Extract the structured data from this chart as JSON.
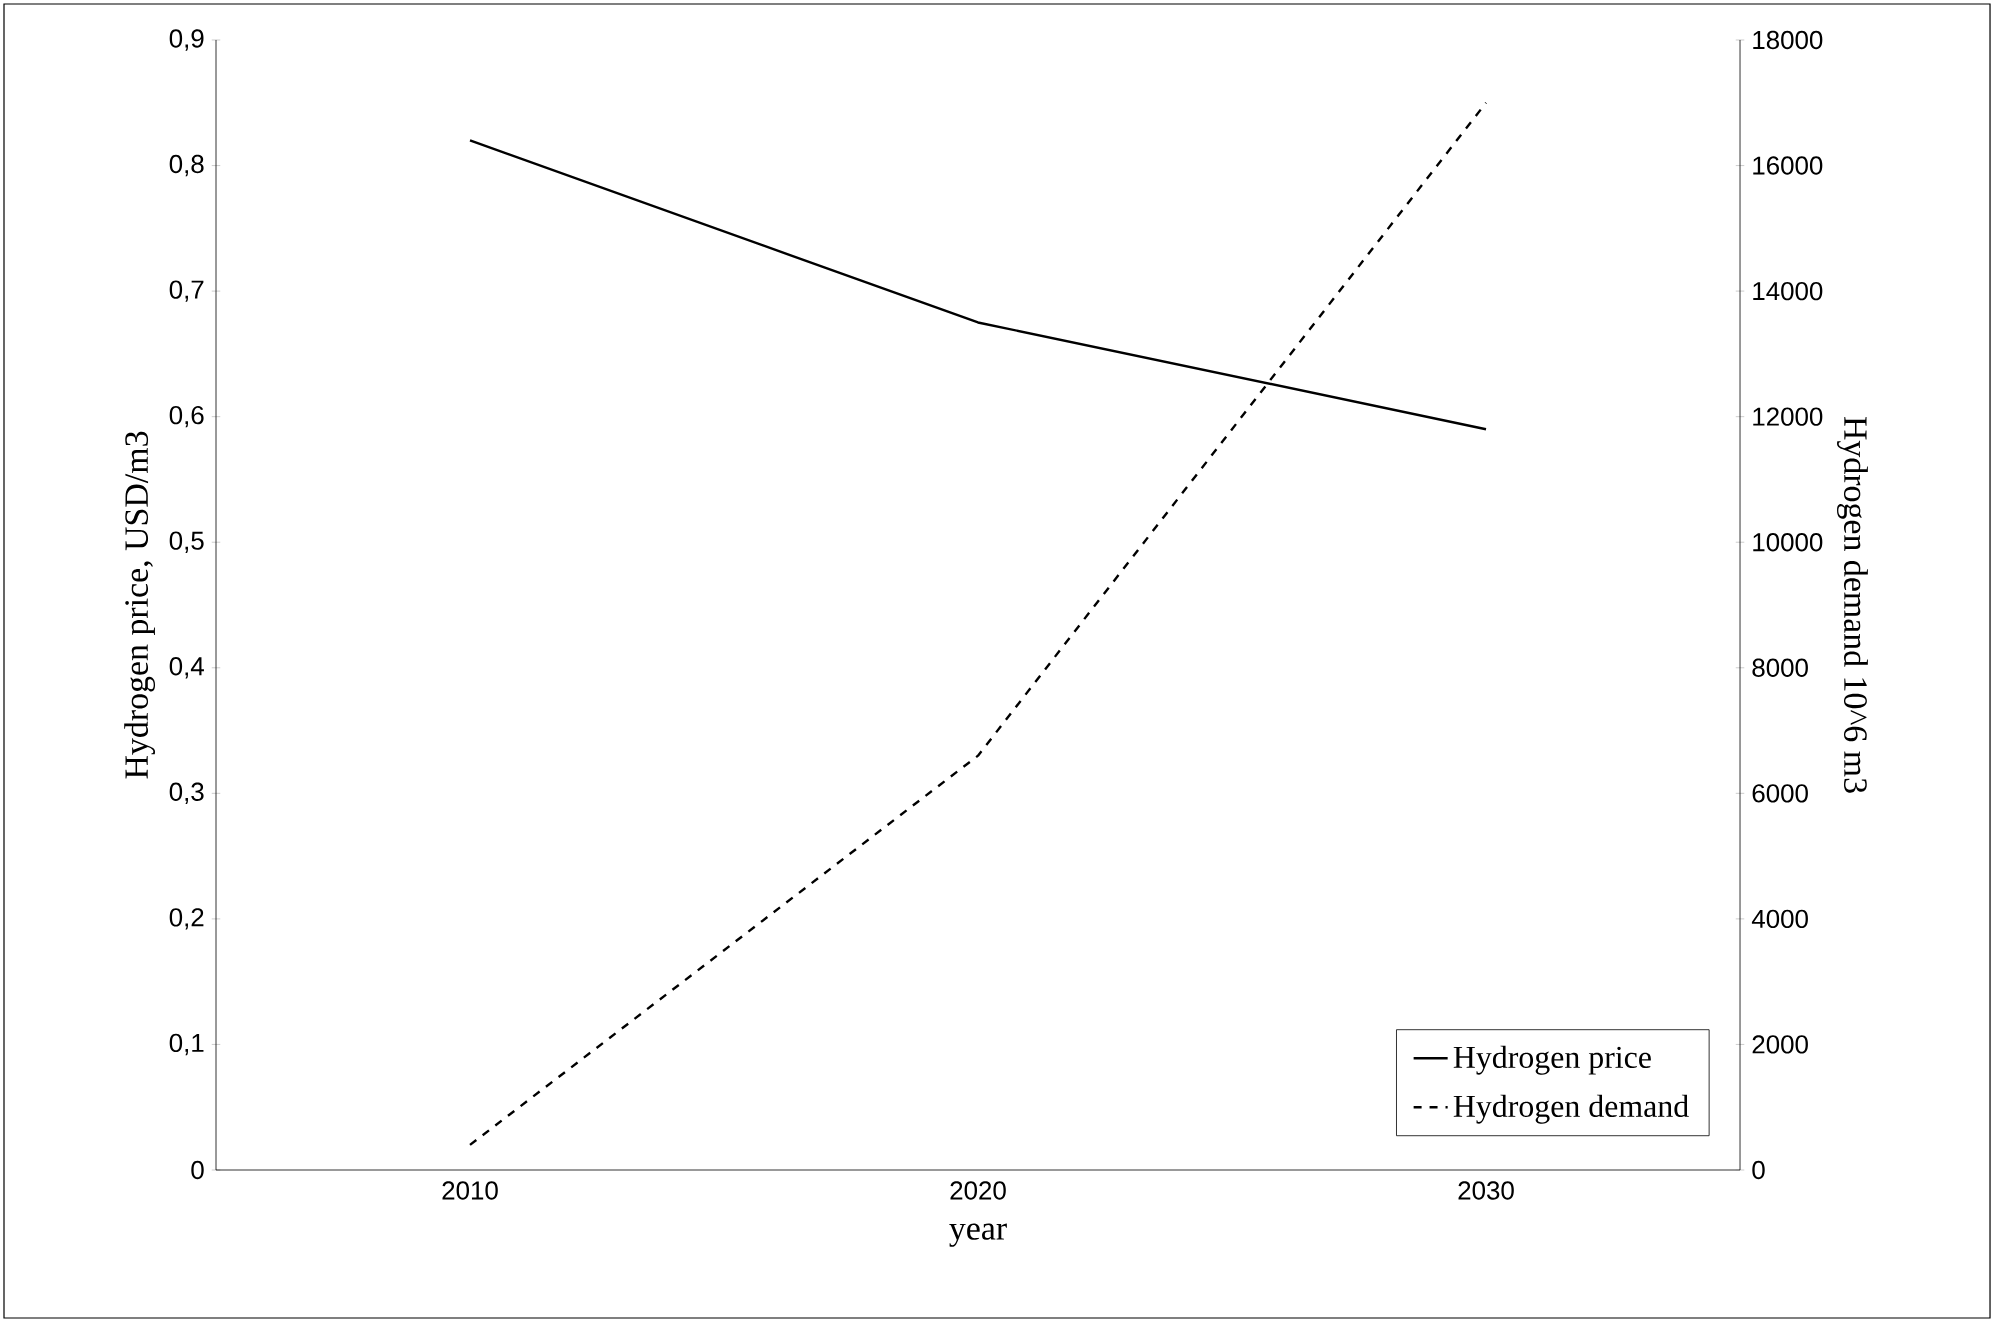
{
  "chart_data": {
    "type": "line",
    "categories": [
      "2010",
      "2020",
      "2030"
    ],
    "xlabel": "year",
    "ylabel": "Hydrogen price, USD/m3",
    "y2label": "Hydrogen demand 10^6 m3",
    "series": [
      {
        "name": "Hydrogen price",
        "color": "#000000",
        "line_style": "solid",
        "values": [
          0.82,
          0.675,
          0.59
        ]
      },
      {
        "name": "Hydrogen demand",
        "color": "#000000",
        "line_style": "dashed",
        "axis": "y2",
        "values": [
          400,
          6600,
          17000
        ]
      }
    ],
    "ylim": [
      0,
      0.9
    ],
    "yticks": [
      {
        "value": 0,
        "label": "0"
      },
      {
        "value": 0.1,
        "label": "0,1"
      },
      {
        "value": 0.2,
        "label": "0,2"
      },
      {
        "value": 0.3,
        "label": "0,3"
      },
      {
        "value": 0.4,
        "label": "0,4"
      },
      {
        "value": 0.5,
        "label": "0,5"
      },
      {
        "value": 0.6,
        "label": "0,6"
      },
      {
        "value": 0.7,
        "label": "0,7"
      },
      {
        "value": 0.8,
        "label": "0,8"
      },
      {
        "value": 0.9,
        "label": "0,9"
      }
    ],
    "y2lim": [
      0,
      18000
    ],
    "y2ticks": [
      0,
      2000,
      4000,
      6000,
      8000,
      10000,
      12000,
      14000,
      16000,
      18000
    ],
    "legend": "bottom right"
  }
}
